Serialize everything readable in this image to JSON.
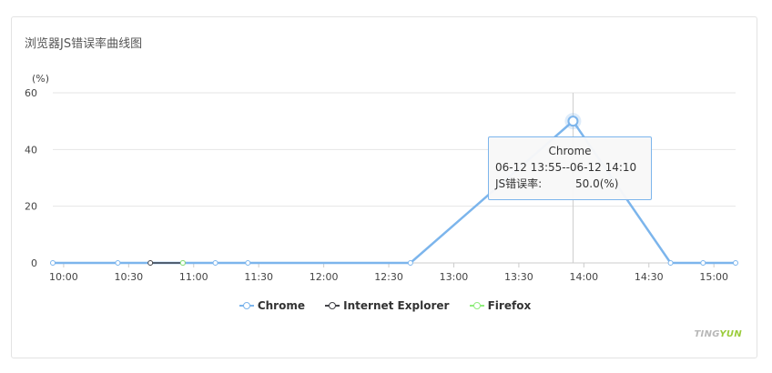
{
  "title": "浏览器JS错误率曲线图",
  "chart_data": {
    "type": "line",
    "ylabel": "(%)",
    "ylim": [
      0,
      60
    ],
    "yticks": [
      "0",
      "20",
      "40",
      "60"
    ],
    "xlim": [
      "09:55",
      "15:10"
    ],
    "xticks": [
      "10:00",
      "10:30",
      "11:00",
      "11:30",
      "12:00",
      "12:30",
      "13:00",
      "13:30",
      "14:00",
      "14:30",
      "15:00"
    ],
    "grid": true,
    "legend": "bottom",
    "series": [
      {
        "name": "Chrome",
        "color": "#7cb5ec",
        "points": [
          [
            "09:55",
            0
          ],
          [
            "10:25",
            0
          ],
          [
            "11:10",
            0
          ],
          [
            "11:25",
            0
          ],
          [
            "12:40",
            0
          ],
          [
            "13:55",
            50
          ],
          [
            "14:40",
            0
          ],
          [
            "14:55",
            0
          ],
          [
            "15:10",
            0
          ]
        ]
      },
      {
        "name": "Internet Explorer",
        "color": "#434348",
        "points": [
          [
            "10:40",
            0
          ],
          [
            "10:55",
            0
          ]
        ]
      },
      {
        "name": "Firefox",
        "color": "#90ed7d",
        "points": [
          [
            "10:55",
            0
          ]
        ]
      }
    ]
  },
  "tooltip": {
    "series": "Chrome",
    "range": "06-12 13:55--06-12 14:10",
    "label": "JS错误率:",
    "value": "50.0(%)"
  },
  "brand": {
    "part1": "TINGYUN",
    "part1_text": "TING",
    "part2_text": "YUN"
  }
}
